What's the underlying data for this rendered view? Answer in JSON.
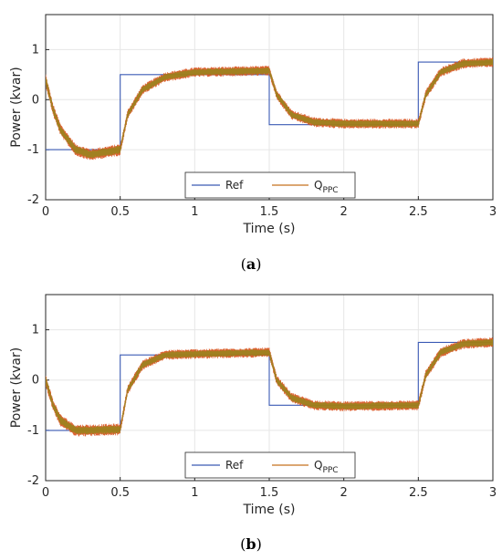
{
  "chart_data": [
    {
      "type": "line",
      "panel": "a",
      "caption": "a",
      "xlabel": "Time (s)",
      "ylabel": "Power (kvar)",
      "xlim": [
        0,
        3
      ],
      "ylim": [
        -2,
        1.7
      ],
      "xticks": [
        "0",
        "0.5",
        "1",
        "1.5",
        "2",
        "2.5",
        "3"
      ],
      "yticks": [
        "1",
        "0",
        "-1",
        "-2"
      ],
      "grid": true,
      "legend": {
        "position": "bottom-center",
        "entries": [
          "Ref",
          "QPPC"
        ],
        "labels": [
          "Ref",
          "Q",
          "PPC"
        ]
      },
      "colors": {
        "ref": "#3b5bb5",
        "q": "#c5701d",
        "noise": "#d9531e",
        "noise2": "#8c8a1a"
      },
      "series": [
        {
          "name": "Ref",
          "x": [
            0,
            0.5,
            0.5,
            1.5,
            1.5,
            2.5,
            2.5,
            3.0
          ],
          "values": [
            -1,
            -1,
            0.5,
            0.5,
            -0.5,
            -0.5,
            0.75,
            0.75
          ]
        },
        {
          "name": "QPPC",
          "x": [
            0,
            0.05,
            0.1,
            0.2,
            0.3,
            0.5,
            0.55,
            0.65,
            0.8,
            1.0,
            1.5,
            1.55,
            1.65,
            1.8,
            2.0,
            2.5,
            2.55,
            2.65,
            2.8,
            3.0
          ],
          "values": [
            0.4,
            -0.2,
            -0.6,
            -1.0,
            -1.1,
            -1.0,
            -0.3,
            0.2,
            0.45,
            0.55,
            0.58,
            0.1,
            -0.3,
            -0.45,
            -0.48,
            -0.48,
            0.1,
            0.55,
            0.72,
            0.75
          ]
        }
      ]
    },
    {
      "type": "line",
      "panel": "b",
      "caption": "b",
      "xlabel": "Time (s)",
      "ylabel": "Power (kvar)",
      "xlim": [
        0,
        3
      ],
      "ylim": [
        -2,
        1.7
      ],
      "xticks": [
        "0",
        "0.5",
        "1",
        "1.5",
        "2",
        "2.5",
        "3"
      ],
      "yticks": [
        "1",
        "0",
        "-1",
        "-2"
      ],
      "grid": true,
      "legend": {
        "position": "bottom-center",
        "entries": [
          "Ref",
          "QPPC"
        ],
        "labels": [
          "Ref",
          "Q",
          "PPC"
        ]
      },
      "colors": {
        "ref": "#3b5bb5",
        "q": "#c5701d",
        "noise": "#d9531e",
        "noise2": "#8c8a1a"
      },
      "series": [
        {
          "name": "Ref",
          "x": [
            0,
            0.5,
            0.5,
            1.5,
            1.5,
            2.5,
            2.5,
            3.0
          ],
          "values": [
            -1,
            -1,
            0.5,
            0.5,
            -0.5,
            -0.5,
            0.75,
            0.75
          ]
        },
        {
          "name": "QPPC",
          "x": [
            0,
            0.05,
            0.1,
            0.2,
            0.3,
            0.5,
            0.55,
            0.65,
            0.8,
            1.0,
            1.5,
            1.55,
            1.65,
            1.8,
            2.0,
            2.5,
            2.55,
            2.65,
            2.8,
            3.0
          ],
          "values": [
            0.0,
            -0.5,
            -0.8,
            -1.0,
            -1.0,
            -0.98,
            -0.2,
            0.3,
            0.5,
            0.52,
            0.55,
            0.0,
            -0.35,
            -0.5,
            -0.52,
            -0.5,
            0.1,
            0.55,
            0.72,
            0.75
          ]
        }
      ]
    }
  ]
}
